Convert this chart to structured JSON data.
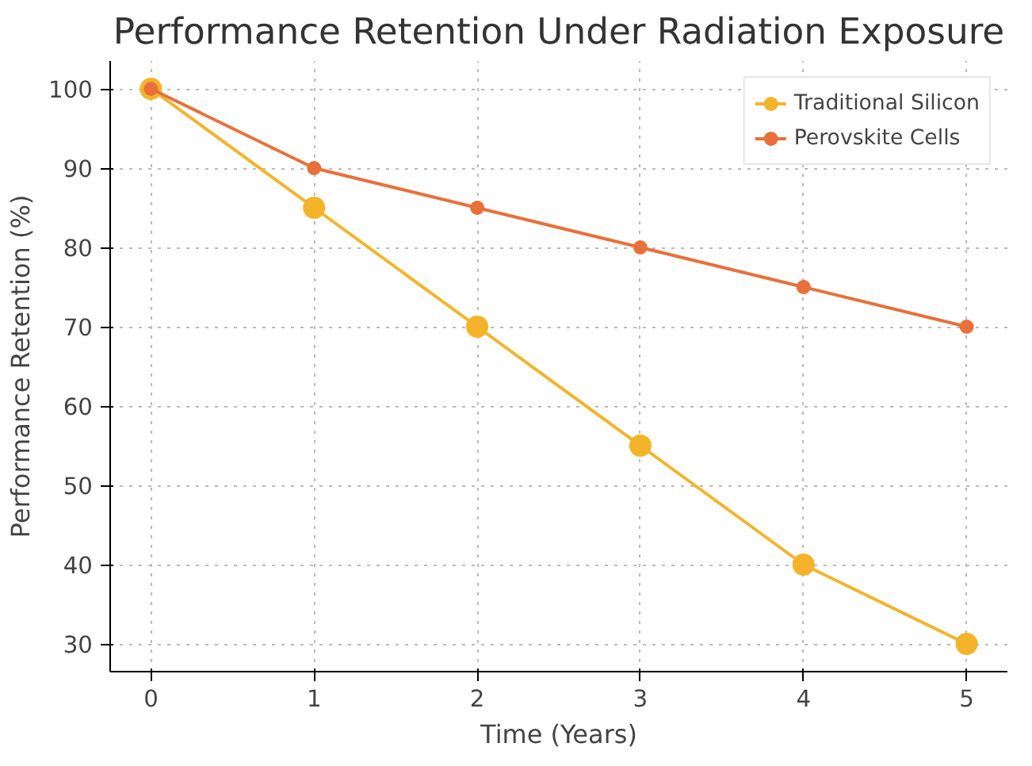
{
  "chart_data": {
    "type": "line",
    "title": "Performance Retention Under Radiation Exposure",
    "xlabel": "Time (Years)",
    "ylabel": "Performance Retention (%)",
    "x": [
      0,
      1,
      2,
      3,
      4,
      5
    ],
    "series": [
      {
        "name": "Traditional Silicon",
        "color": "#f4b32a",
        "values": [
          100,
          85,
          70,
          55,
          40,
          30
        ]
      },
      {
        "name": "Perovskite Cells",
        "color": "#e8703a",
        "values": [
          100,
          90,
          85,
          80,
          75,
          70
        ]
      }
    ],
    "xlim": [
      -0.25,
      5.25
    ],
    "ylim": [
      26.5,
      103.5
    ],
    "xticks": [
      0,
      1,
      2,
      3,
      4,
      5
    ],
    "yticks": [
      30,
      40,
      50,
      60,
      70,
      80,
      90,
      100
    ],
    "grid": true,
    "legend": "top right",
    "marker": "circle",
    "line_style": "solid"
  }
}
